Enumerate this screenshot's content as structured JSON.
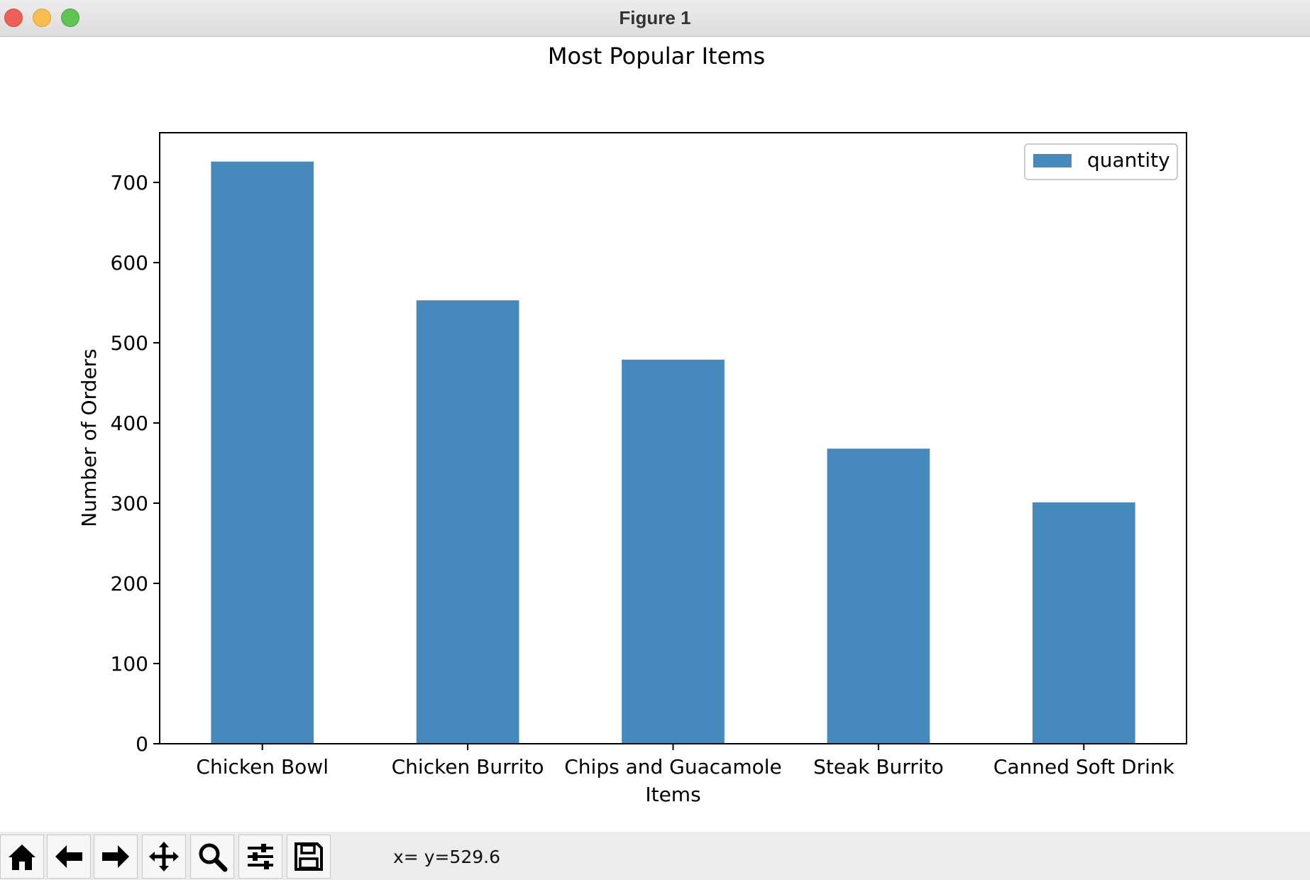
{
  "window": {
    "title": "Figure 1"
  },
  "toolbar": {
    "buttons": [
      {
        "name": "home-button",
        "icon": "home-icon"
      },
      {
        "name": "back-button",
        "icon": "arrow-left-icon"
      },
      {
        "name": "forward-button",
        "icon": "arrow-right-icon"
      },
      {
        "name": "pan-button",
        "icon": "move-icon"
      },
      {
        "name": "zoom-button",
        "icon": "magnifier-icon"
      },
      {
        "name": "configure-subplots-button",
        "icon": "sliders-icon"
      },
      {
        "name": "save-button",
        "icon": "floppy-disk-icon"
      }
    ],
    "status": "x= y=529.6"
  },
  "colors": {
    "bar": "#4689bc",
    "axis": "#000000",
    "titlebar": "#e4e4e4"
  },
  "chart_data": {
    "type": "bar",
    "title": "Most Popular Items",
    "xlabel": "Items",
    "ylabel": "Number of Orders",
    "categories": [
      "Chicken Bowl",
      "Chicken Burrito",
      "Chips and Guacamole",
      "Steak Burrito",
      "Canned Soft Drink"
    ],
    "series": [
      {
        "name": "quantity",
        "values": [
          726,
          553,
          479,
          368,
          301
        ]
      }
    ],
    "ylim": [
      0,
      762
    ],
    "yticks": [
      0,
      100,
      200,
      300,
      400,
      500,
      600,
      700
    ],
    "grid": false,
    "legend": "top-right"
  }
}
